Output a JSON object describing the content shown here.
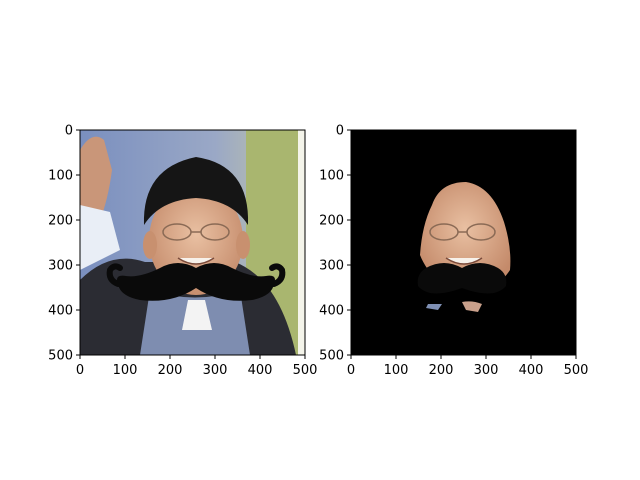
{
  "chart_data": [
    {
      "type": "image",
      "image_content": "photo of a smiling man in a black turban with a large black cartoon mustache overlaid",
      "xlim": [
        0,
        500
      ],
      "ylim": [
        500,
        0
      ],
      "xticks": [
        0,
        100,
        200,
        300,
        400,
        500
      ],
      "yticks": [
        0,
        100,
        200,
        300,
        400,
        500
      ],
      "xtick_labels": [
        "0",
        "100",
        "200",
        "300",
        "400",
        "500"
      ],
      "ytick_labels": [
        "0",
        "100",
        "200",
        "300",
        "400",
        "500"
      ]
    },
    {
      "type": "image",
      "image_content": "masked version showing only the face region with mustache on a black background",
      "xlim": [
        0,
        500
      ],
      "ylim": [
        500,
        0
      ],
      "xticks": [
        0,
        100,
        200,
        300,
        400,
        500
      ],
      "yticks": [
        0,
        100,
        200,
        300,
        400,
        500
      ],
      "xtick_labels": [
        "0",
        "100",
        "200",
        "300",
        "400",
        "500"
      ],
      "ytick_labels": [
        "0",
        "100",
        "200",
        "300",
        "400",
        "500"
      ]
    }
  ],
  "colors": {
    "skin": "#d8a98a",
    "turban": "#141414",
    "mustache": "#0a0a0a",
    "pole": "#a7b56e",
    "background_blue": "#7f90b4",
    "mask": "#000000"
  }
}
